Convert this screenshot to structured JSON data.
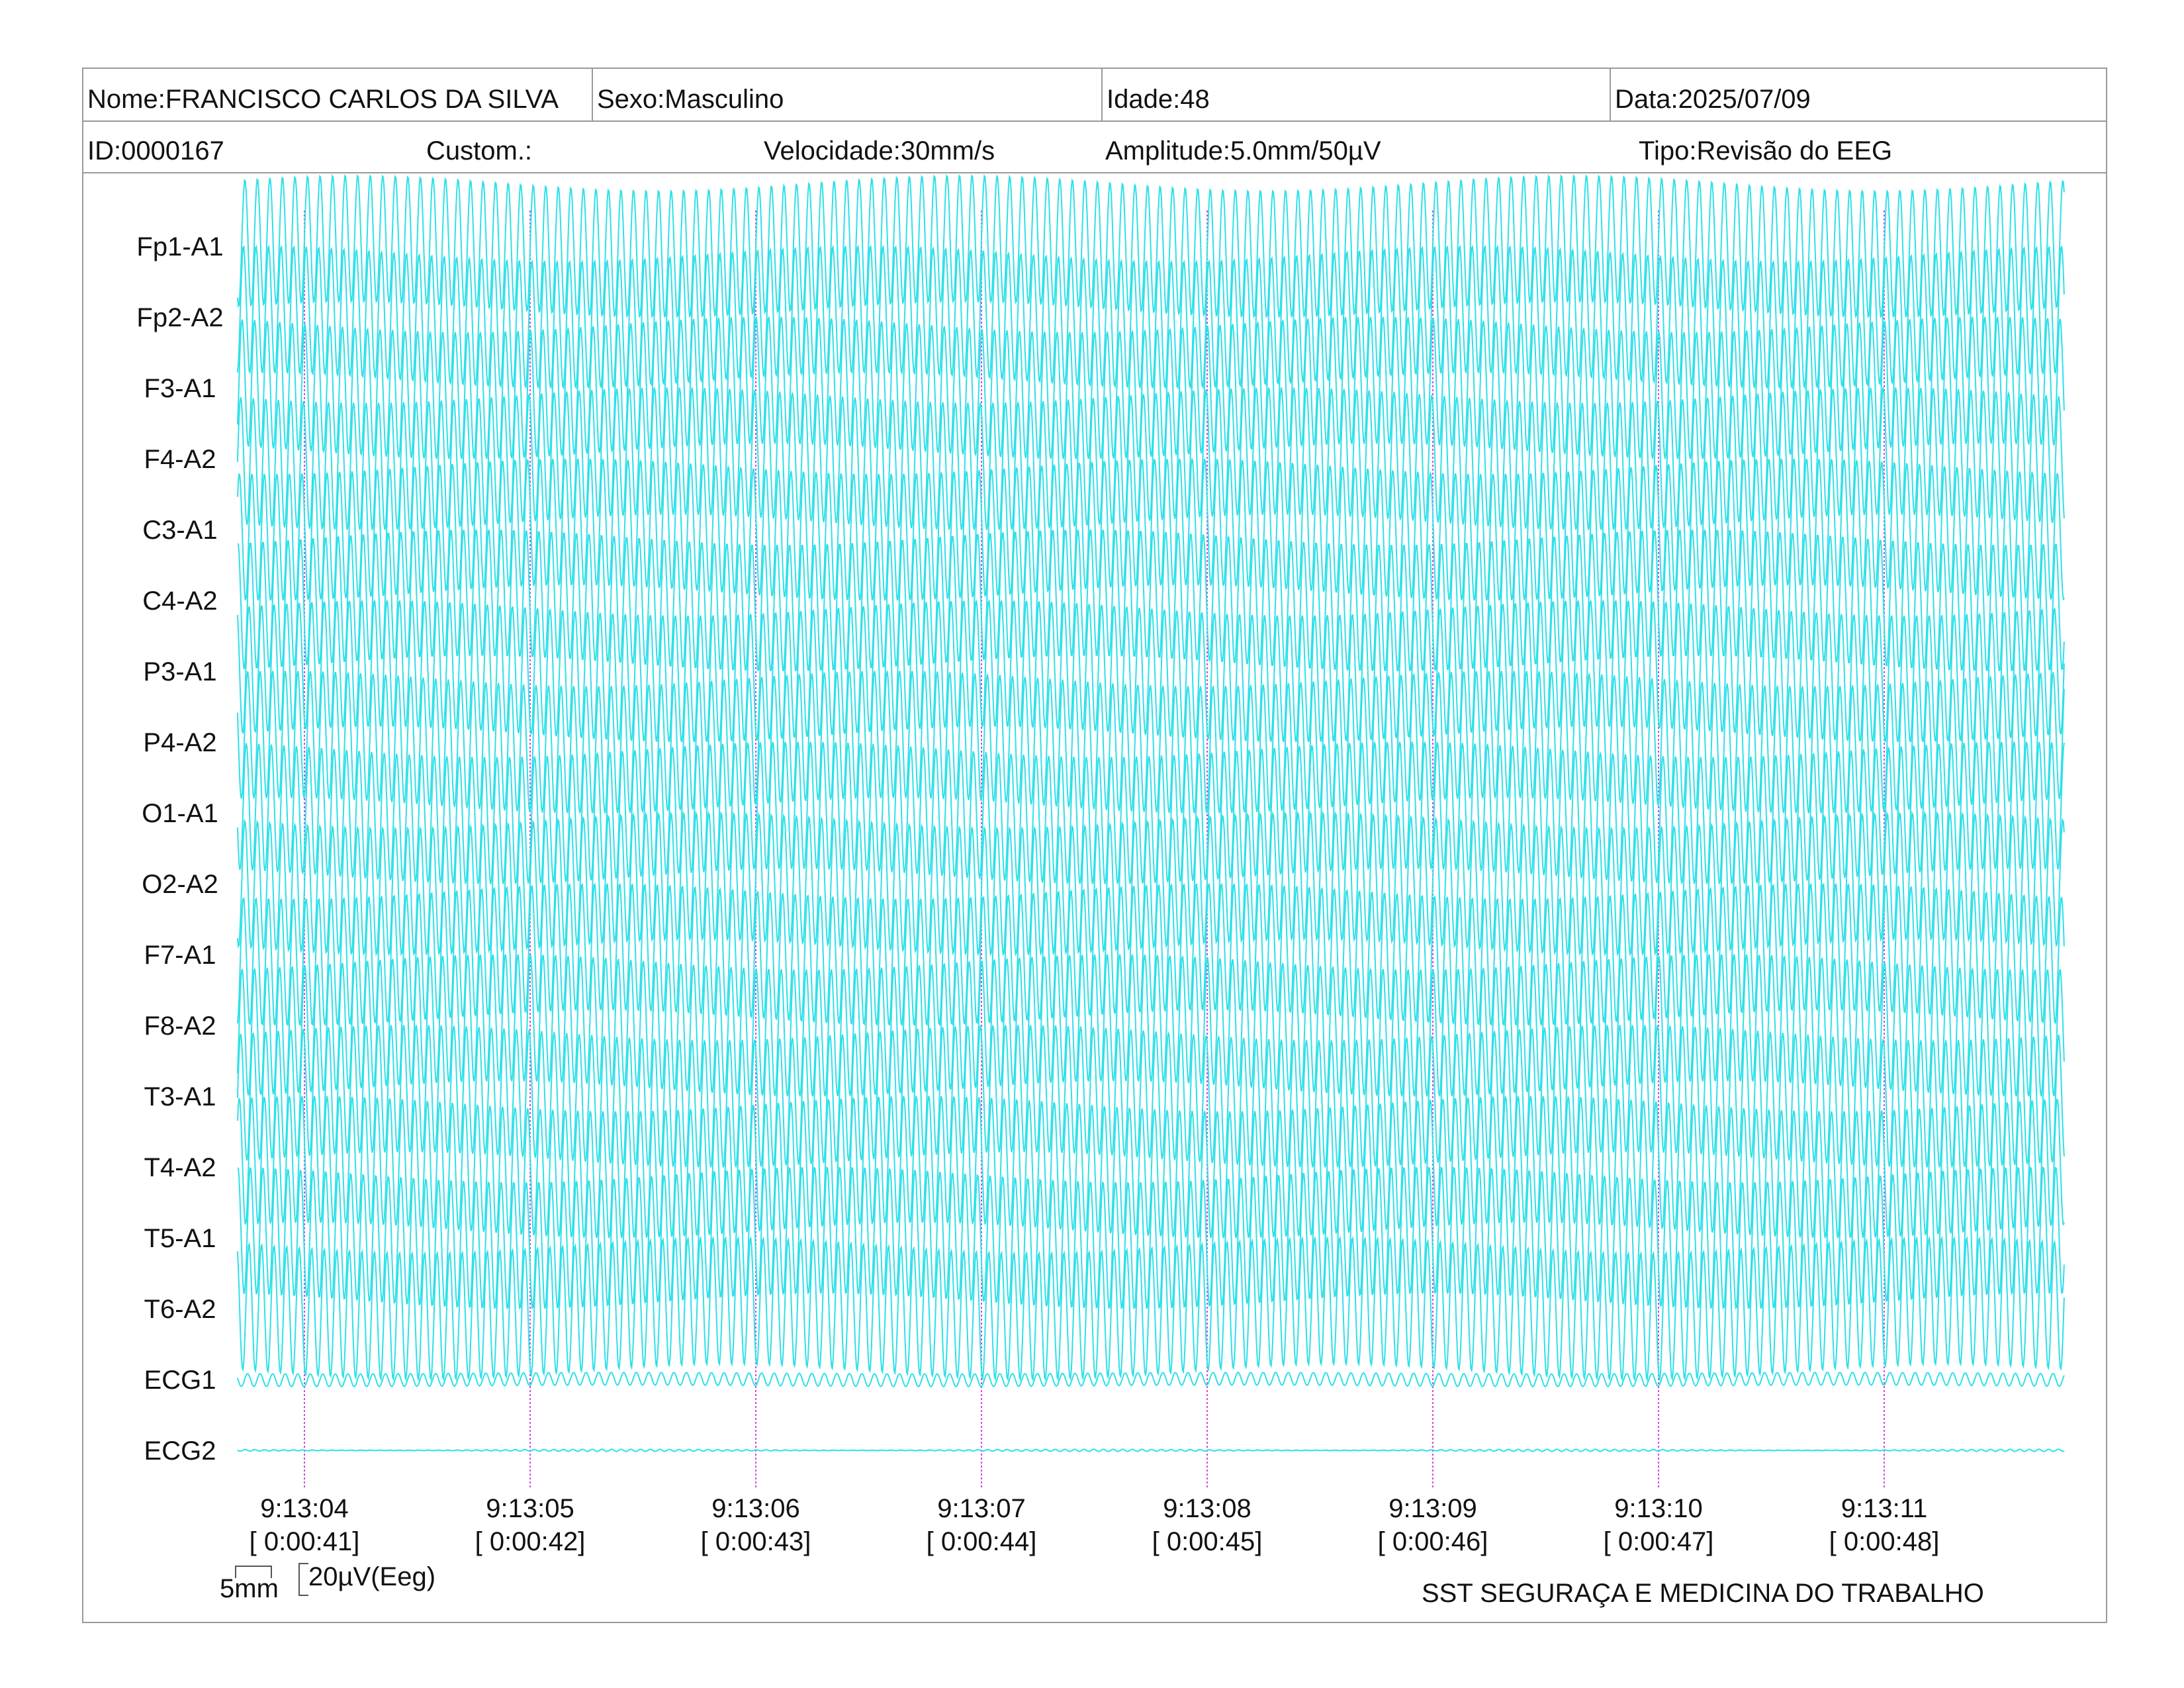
{
  "header": {
    "nome": "Nome:FRANCISCO CARLOS DA SILVA",
    "sexo": "Sexo:Masculino",
    "idade": "Idade:48",
    "data": "Data:2025/07/09",
    "id": "ID:0000167",
    "custom": "Custom.:",
    "velocidade": "Velocidade:30mm/s",
    "amplitude": "Amplitude:5.0mm/50µV",
    "tipo": "Tipo:Revisão do EEG"
  },
  "scale": {
    "time_label": "5mm",
    "amplitude_label": "20µV(Eeg)"
  },
  "footer": {
    "organization": "SST SEGURAÇA E MEDICINA DO TRABALHO"
  },
  "colors": {
    "trace": "#2fe0e8",
    "second_marker": "#d04ad8",
    "border": "#9a9a9a"
  },
  "chart_data": {
    "type": "line",
    "title": "",
    "xlabel": "",
    "ylabel": "",
    "grid": false,
    "channels": [
      "Fp1-A1",
      "Fp2-A2",
      "F3-A1",
      "F4-A2",
      "C3-A1",
      "C4-A2",
      "P3-A1",
      "P4-A2",
      "O1-A1",
      "O2-A2",
      "F7-A1",
      "F8-A2",
      "T3-A1",
      "T4-A2",
      "T5-A1",
      "T6-A2",
      "ECG1",
      "ECG2"
    ],
    "time_ticks": [
      {
        "clock": "9:13:04",
        "elapsed": "[ 0:00:41]"
      },
      {
        "clock": "9:13:05",
        "elapsed": "[ 0:00:42]"
      },
      {
        "clock": "9:13:06",
        "elapsed": "[ 0:00:43]"
      },
      {
        "clock": "9:13:07",
        "elapsed": "[ 0:00:44]"
      },
      {
        "clock": "9:13:08",
        "elapsed": "[ 0:00:45]"
      },
      {
        "clock": "9:13:09",
        "elapsed": "[ 0:00:46]"
      },
      {
        "clock": "9:13:10",
        "elapsed": "[ 0:00:47]"
      },
      {
        "clock": "9:13:11",
        "elapsed": "[ 0:00:48]"
      }
    ],
    "eeg_frequency_hz": 18,
    "ecg1_frequency_hz": 18,
    "eeg_amplitude_uv": 60,
    "ecg1_amplitude_uv": 6,
    "ecg2_amplitude_uv": 1,
    "time_range_s": [
      40.7,
      48.8
    ]
  }
}
